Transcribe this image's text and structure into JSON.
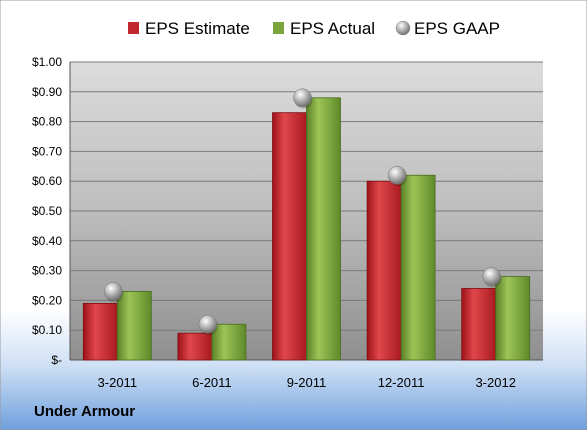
{
  "chart_data": {
    "type": "bar",
    "categories": [
      "3-2011",
      "6-2011",
      "9-2011",
      "12-2011",
      "3-2012"
    ],
    "series": [
      {
        "name": "EPS Estimate",
        "values": [
          0.19,
          0.09,
          0.83,
          0.6,
          0.24
        ],
        "color": "#c0282d"
      },
      {
        "name": "EPS Actual",
        "values": [
          0.23,
          0.12,
          0.88,
          0.62,
          0.28
        ],
        "color": "#7aa43c"
      }
    ],
    "scatter_series": {
      "name": "EPS GAAP",
      "values": [
        0.23,
        0.12,
        0.88,
        0.62,
        0.28
      ],
      "color": "#a9a9a9"
    },
    "ylim": [
      0,
      1.0
    ],
    "yticks": [
      0,
      0.1,
      0.2,
      0.3,
      0.4,
      0.5,
      0.6,
      0.7,
      0.8,
      0.9,
      1.0
    ],
    "ytick_labels": [
      "$-",
      "$0.10",
      "$0.20",
      "$0.30",
      "$0.40",
      "$0.50",
      "$0.60",
      "$0.70",
      "$0.80",
      "$0.90",
      "$1.00"
    ],
    "grid": true,
    "legend_position": "top",
    "company": "Under Armour"
  }
}
